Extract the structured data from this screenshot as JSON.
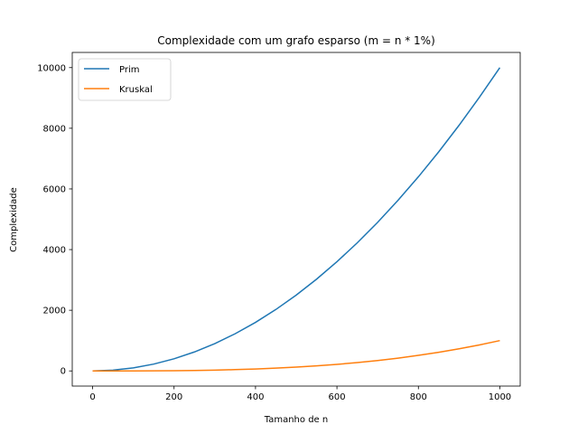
{
  "chart_data": {
    "type": "line",
    "title": "Complexidade com um grafo esparso (m = n * 1%)",
    "xlabel": "Tamanho de n",
    "ylabel": "Complexidade",
    "xlim": [
      -50,
      1050
    ],
    "ylim": [
      -500,
      10500
    ],
    "xticks": [
      0,
      200,
      400,
      600,
      800,
      1000
    ],
    "yticks": [
      0,
      2000,
      4000,
      6000,
      8000,
      10000
    ],
    "xtick_labels": [
      "0",
      "200",
      "400",
      "600",
      "800",
      "1000"
    ],
    "ytick_labels": [
      "0",
      "2000",
      "4000",
      "6000",
      "8000",
      "10000"
    ],
    "grid": false,
    "legend_position": "top-left",
    "x": [
      0,
      50,
      100,
      150,
      200,
      250,
      300,
      350,
      400,
      450,
      500,
      550,
      600,
      650,
      700,
      750,
      800,
      850,
      900,
      950,
      1000
    ],
    "series": [
      {
        "name": "Prim",
        "color": "#1f77b4",
        "values": [
          0,
          25,
          100,
          225,
          400,
          625,
          900,
          1225,
          1600,
          2025,
          2500,
          3025,
          3600,
          4225,
          4900,
          5625,
          6400,
          7225,
          8100,
          9025,
          10000
        ]
      },
      {
        "name": "Kruskal",
        "color": "#ff7f0e",
        "values": [
          0,
          0.1,
          1,
          3.4,
          8,
          15.6,
          27,
          42.9,
          64,
          91.1,
          125,
          166.4,
          216,
          274.6,
          343,
          421.9,
          512,
          614.1,
          729,
          857.4,
          1000
        ]
      }
    ]
  }
}
